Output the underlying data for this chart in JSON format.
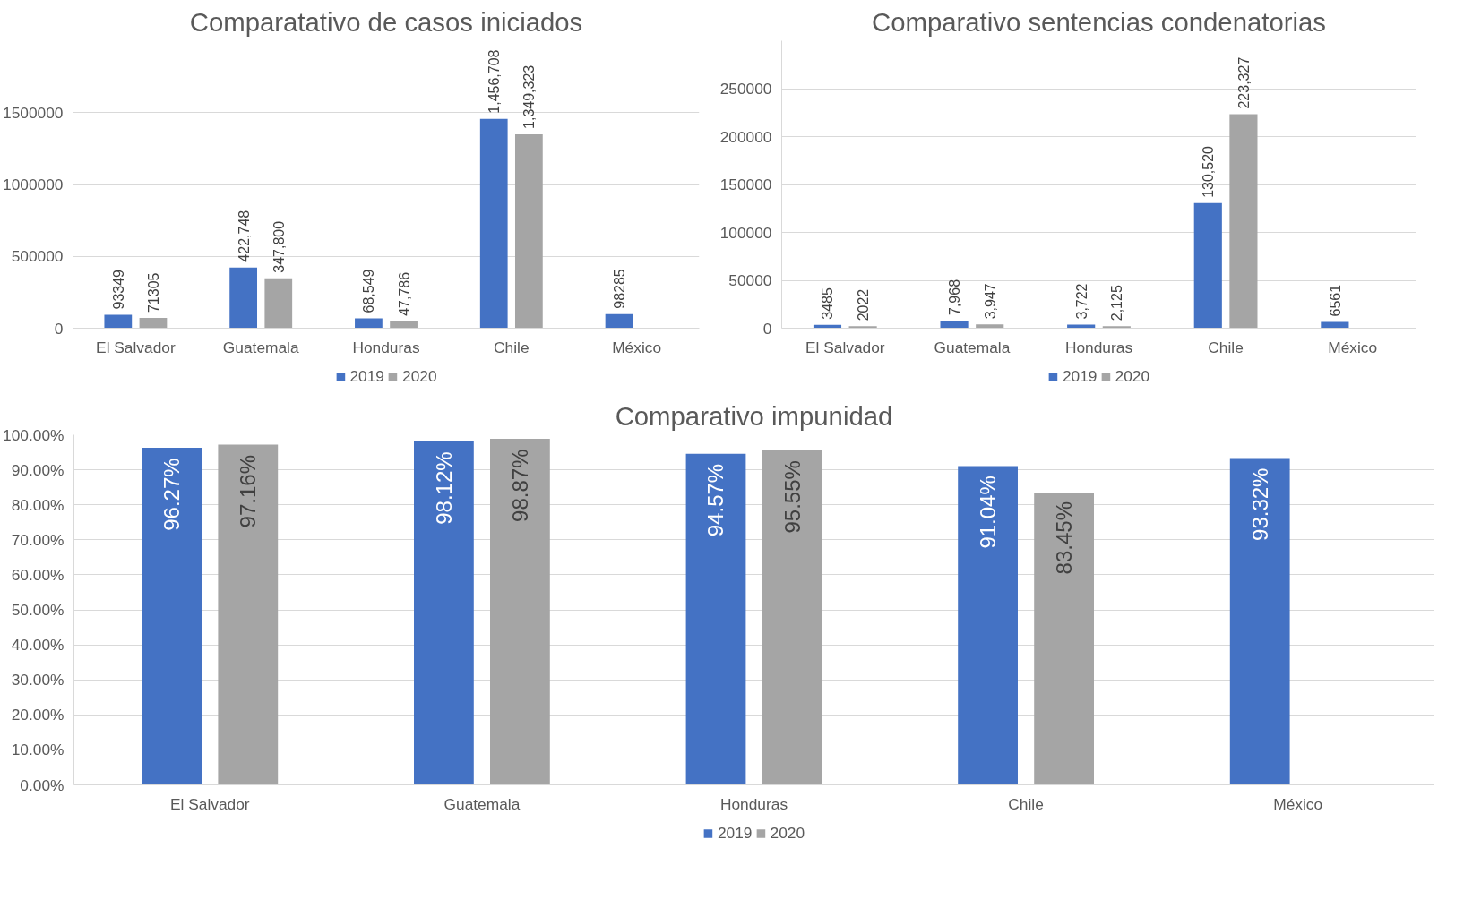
{
  "chart_data": [
    {
      "type": "bar",
      "title": "Comparatativo de casos iniciados",
      "categories": [
        "El Salvador",
        "Guatemala",
        "Honduras",
        "Chile",
        "México"
      ],
      "ylim": [
        0,
        2000000
      ],
      "yticks": [
        0,
        500000,
        1000000,
        1500000
      ],
      "grid": "y",
      "legend": "bottom",
      "series": [
        {
          "name": "2019",
          "color": "#4472c4",
          "values": [
            93349,
            422748,
            68549,
            1456708,
            98285
          ],
          "value_labels": [
            "93349",
            "422,748",
            "68,549",
            "1,456,708",
            "98285"
          ]
        },
        {
          "name": "2020",
          "color": "#a5a5a5",
          "values": [
            71305,
            347800,
            47786,
            1349323,
            null
          ],
          "value_labels": [
            "71305",
            "347,800",
            "47,786",
            "1,349,323",
            null
          ]
        }
      ]
    },
    {
      "type": "bar",
      "title": "Comparativo sentencias condenatorias",
      "categories": [
        "El Salvador",
        "Guatemala",
        "Honduras",
        "Chile",
        "México"
      ],
      "ylim": [
        0,
        300000
      ],
      "yticks": [
        0,
        50000,
        100000,
        150000,
        200000,
        250000
      ],
      "grid": "y",
      "legend": "bottom",
      "series": [
        {
          "name": "2019",
          "color": "#4472c4",
          "values": [
            3485,
            7968,
            3722,
            130520,
            6561
          ],
          "value_labels": [
            "3485",
            "7,968",
            "3,722",
            "130,520",
            "6561"
          ]
        },
        {
          "name": "2020",
          "color": "#a5a5a5",
          "values": [
            2022,
            3947,
            2125,
            223327,
            null
          ],
          "value_labels": [
            "2022",
            "3,947",
            "2,125",
            "223,327",
            null
          ]
        }
      ]
    },
    {
      "type": "bar",
      "title": "Comparativo impunidad",
      "categories": [
        "El Salvador",
        "Guatemala",
        "Honduras",
        "Chile",
        "México"
      ],
      "ylim": [
        0,
        100
      ],
      "yticks": [
        {
          "value": 0,
          "label": "0.00%"
        },
        {
          "value": 10,
          "label": "10.00%"
        },
        {
          "value": 20,
          "label": "20.00%"
        },
        {
          "value": 30,
          "label": "30.00%"
        },
        {
          "value": 40,
          "label": "40.00%"
        },
        {
          "value": 50,
          "label": "50.00%"
        },
        {
          "value": 60,
          "label": "60.00%"
        },
        {
          "value": 70,
          "label": "70.00%"
        },
        {
          "value": 80,
          "label": "80.00%"
        },
        {
          "value": 90,
          "label": "90.00%"
        },
        {
          "value": 100,
          "label": "100.00%"
        }
      ],
      "grid": "y",
      "legend": "bottom",
      "series": [
        {
          "name": "2019",
          "color": "#4472c4",
          "values": [
            96.27,
            98.12,
            94.57,
            91.04,
            93.32
          ],
          "value_labels": [
            "96.27%",
            "98.12%",
            "94.57%",
            "91.04%",
            "93.32%"
          ]
        },
        {
          "name": "2020",
          "color": "#a5a5a5",
          "values": [
            97.16,
            98.87,
            95.55,
            83.45,
            null
          ],
          "value_labels": [
            "97.16%",
            "98.87%",
            "95.55%",
            "83.45%",
            null
          ]
        }
      ]
    }
  ]
}
